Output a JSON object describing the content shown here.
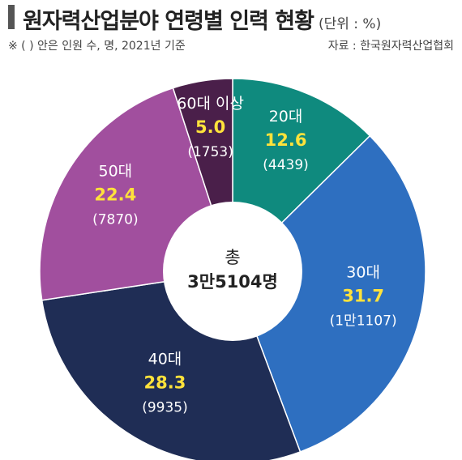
{
  "header": {
    "title": "원자력산업분야 연령별 인력 현황",
    "unit": "(단위 : %)",
    "note": "※ (  ) 안은 인원 수, 명, 2021년 기준",
    "source": "자료 : 한국원자력산업협회"
  },
  "center": {
    "label": "총",
    "total": "3만5104명"
  },
  "chart_data": {
    "type": "pie",
    "donut": true,
    "categories": [
      "20대",
      "30대",
      "40대",
      "50대",
      "60대 이상"
    ],
    "values": [
      12.6,
      31.7,
      28.3,
      22.4,
      5.0
    ],
    "value_labels": [
      "12.6",
      "31.7",
      "28.3",
      "22.4",
      "5.0"
    ],
    "counts": [
      "(4439)",
      "(1만1107)",
      "(9935)",
      "(7870)",
      "(1753)"
    ],
    "colors": [
      "#0f8a7e",
      "#2e6fc0",
      "#1f2d55",
      "#a14f9e",
      "#4a1f4a"
    ],
    "title": "원자력산업분야 연령별 인력 현황",
    "start": "12 o'clock, clockwise"
  }
}
